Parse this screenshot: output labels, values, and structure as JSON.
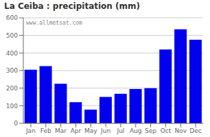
{
  "chart_data": {
    "type": "bar",
    "title": "La Ceiba : precipitation (mm)",
    "categories": [
      "Jan",
      "Feb",
      "Mar",
      "Apr",
      "May",
      "Jun",
      "Jul",
      "Aug",
      "Sep",
      "Oct",
      "Nov",
      "Dec"
    ],
    "values": [
      305,
      325,
      225,
      120,
      78,
      150,
      168,
      195,
      200,
      420,
      535,
      475
    ],
    "color": "#0000ee",
    "ylim": [
      0,
      600
    ],
    "yticks": [
      0,
      100,
      200,
      300,
      400,
      500,
      600
    ],
    "grid": true,
    "annotations": [
      "www.allmetsat.com"
    ]
  }
}
